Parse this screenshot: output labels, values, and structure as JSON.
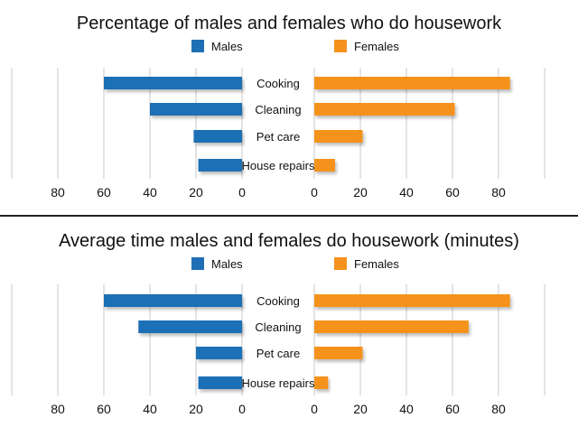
{
  "colors": {
    "males": "#1f6fb5",
    "females": "#f5921e",
    "grid": "#c8c8c8",
    "text": "#111111"
  },
  "chart_data": [
    {
      "type": "bar",
      "orientation": "horizontal-butterfly",
      "title": "Percentage of males and females who do housework",
      "categories": [
        "Cooking",
        "Cleaning",
        "Pet care",
        "House repairs"
      ],
      "series": [
        {
          "name": "Males",
          "values": [
            60,
            40,
            21,
            19
          ]
        },
        {
          "name": "Females",
          "values": [
            85,
            61,
            21,
            9
          ]
        }
      ],
      "left_ticks": [
        "80",
        "60",
        "40",
        "20",
        "0"
      ],
      "right_ticks": [
        "0",
        "20",
        "40",
        "60",
        "80"
      ],
      "xlim": [
        0,
        100
      ],
      "legend": "top-center"
    },
    {
      "type": "bar",
      "orientation": "horizontal-butterfly",
      "title": "Average time males and females do housework (minutes)",
      "categories": [
        "Cooking",
        "Cleaning",
        "Pet care",
        "House repairs"
      ],
      "series": [
        {
          "name": "Males",
          "values": [
            60,
            45,
            20,
            19
          ]
        },
        {
          "name": "Females",
          "values": [
            85,
            67,
            21,
            6
          ]
        }
      ],
      "left_ticks": [
        "80",
        "60",
        "40",
        "20",
        "0"
      ],
      "right_ticks": [
        "0",
        "20",
        "40",
        "60",
        "80"
      ],
      "xlim": [
        0,
        100
      ],
      "legend": "top-center"
    }
  ]
}
